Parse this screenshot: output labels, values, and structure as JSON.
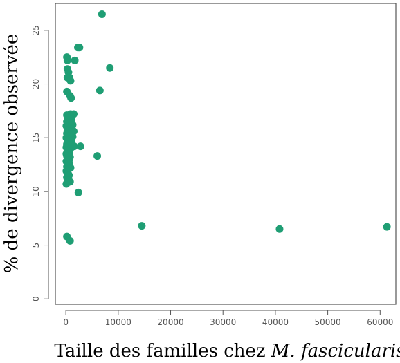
{
  "chart_data": {
    "type": "scatter",
    "title": "",
    "xlabel_plain": "Taille des familles chez ",
    "xlabel_italic": "M. fascicularis",
    "ylabel": "% de divergence observée",
    "xlim": [
      -2000,
      63000
    ],
    "ylim": [
      -0.5,
      27.5
    ],
    "x_ticks": [
      0,
      10000,
      20000,
      30000,
      40000,
      50000,
      60000
    ],
    "y_ticks": [
      0,
      5,
      10,
      15,
      20,
      25
    ],
    "grid": false,
    "legend": "none",
    "color": "#1f9e74",
    "series": [
      {
        "points": [
          [
            6900,
            26.5
          ],
          [
            2300,
            23.4
          ],
          [
            2600,
            23.4
          ],
          [
            200,
            22.5
          ],
          [
            300,
            22.2
          ],
          [
            1700,
            22.2
          ],
          [
            8400,
            21.5
          ],
          [
            300,
            21.4
          ],
          [
            500,
            21.1
          ],
          [
            300,
            20.6
          ],
          [
            700,
            20.6
          ],
          [
            900,
            20.3
          ],
          [
            6500,
            19.4
          ],
          [
            200,
            19.3
          ],
          [
            800,
            18.9
          ],
          [
            1000,
            18.7
          ],
          [
            200,
            17.1
          ],
          [
            900,
            17.2
          ],
          [
            1500,
            17.2
          ],
          [
            400,
            16.8
          ],
          [
            700,
            16.8
          ],
          [
            1100,
            16.7
          ],
          [
            200,
            16.5
          ],
          [
            500,
            16.4
          ],
          [
            900,
            16.4
          ],
          [
            1300,
            16.2
          ],
          [
            100,
            16.1
          ],
          [
            400,
            16.0
          ],
          [
            800,
            15.9
          ],
          [
            1200,
            15.8
          ],
          [
            300,
            15.7
          ],
          [
            600,
            15.6
          ],
          [
            1000,
            15.5
          ],
          [
            1500,
            15.6
          ],
          [
            200,
            15.4
          ],
          [
            500,
            15.3
          ],
          [
            900,
            15.2
          ],
          [
            1300,
            15.1
          ],
          [
            100,
            15.0
          ],
          [
            400,
            14.9
          ],
          [
            700,
            14.8
          ],
          [
            1100,
            14.7
          ],
          [
            300,
            14.6
          ],
          [
            600,
            14.5
          ],
          [
            200,
            14.4
          ],
          [
            800,
            14.3
          ],
          [
            1600,
            14.2
          ],
          [
            2800,
            14.2
          ],
          [
            100,
            14.1
          ],
          [
            500,
            14.0
          ],
          [
            900,
            14.0
          ],
          [
            300,
            13.8
          ],
          [
            700,
            13.6
          ],
          [
            100,
            13.5
          ],
          [
            500,
            13.4
          ],
          [
            200,
            13.3
          ],
          [
            800,
            13.2
          ],
          [
            6000,
            13.3
          ],
          [
            400,
            13.0
          ],
          [
            600,
            12.9
          ],
          [
            100,
            12.8
          ],
          [
            300,
            12.6
          ],
          [
            700,
            12.5
          ],
          [
            200,
            12.3
          ],
          [
            500,
            12.1
          ],
          [
            900,
            12.2
          ],
          [
            100,
            11.9
          ],
          [
            400,
            11.7
          ],
          [
            600,
            11.5
          ],
          [
            200,
            11.3
          ],
          [
            300,
            11.1
          ],
          [
            800,
            10.9
          ],
          [
            100,
            10.7
          ],
          [
            2400,
            9.9
          ],
          [
            14500,
            6.8
          ],
          [
            40800,
            6.5
          ],
          [
            61300,
            6.7
          ],
          [
            200,
            5.8
          ],
          [
            800,
            5.4
          ]
        ]
      }
    ]
  }
}
